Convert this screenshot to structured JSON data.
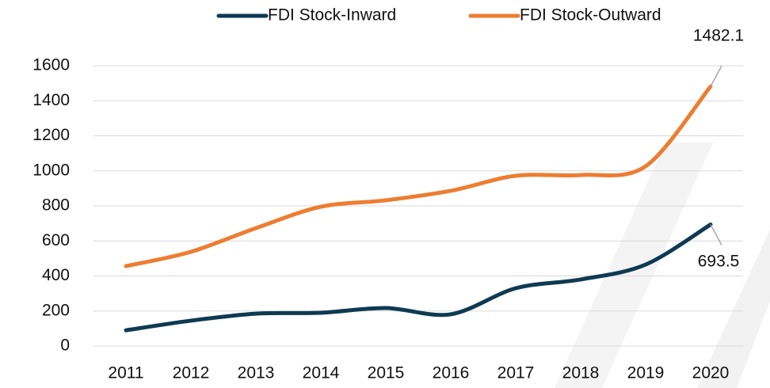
{
  "chart_data": {
    "type": "line",
    "categories": [
      "2011",
      "2012",
      "2013",
      "2014",
      "2015",
      "2016",
      "2017",
      "2018",
      "2019",
      "2020"
    ],
    "series": [
      {
        "name": "FDI Stock-Inward",
        "color": "#0e3a52",
        "values": [
          90,
          145,
          185,
          190,
          217,
          181,
          330,
          380,
          465,
          693.5
        ]
      },
      {
        "name": "FDI Stock-Outward",
        "color": "#ed7d31",
        "values": [
          456,
          538,
          673,
          795,
          832,
          886,
          972,
          976,
          1026,
          1482.1
        ]
      }
    ],
    "ylim": [
      0,
      1600
    ],
    "yticks": [
      0,
      200,
      400,
      600,
      800,
      1000,
      1200,
      1400,
      1600
    ],
    "grid": true,
    "legend": "top"
  }
}
